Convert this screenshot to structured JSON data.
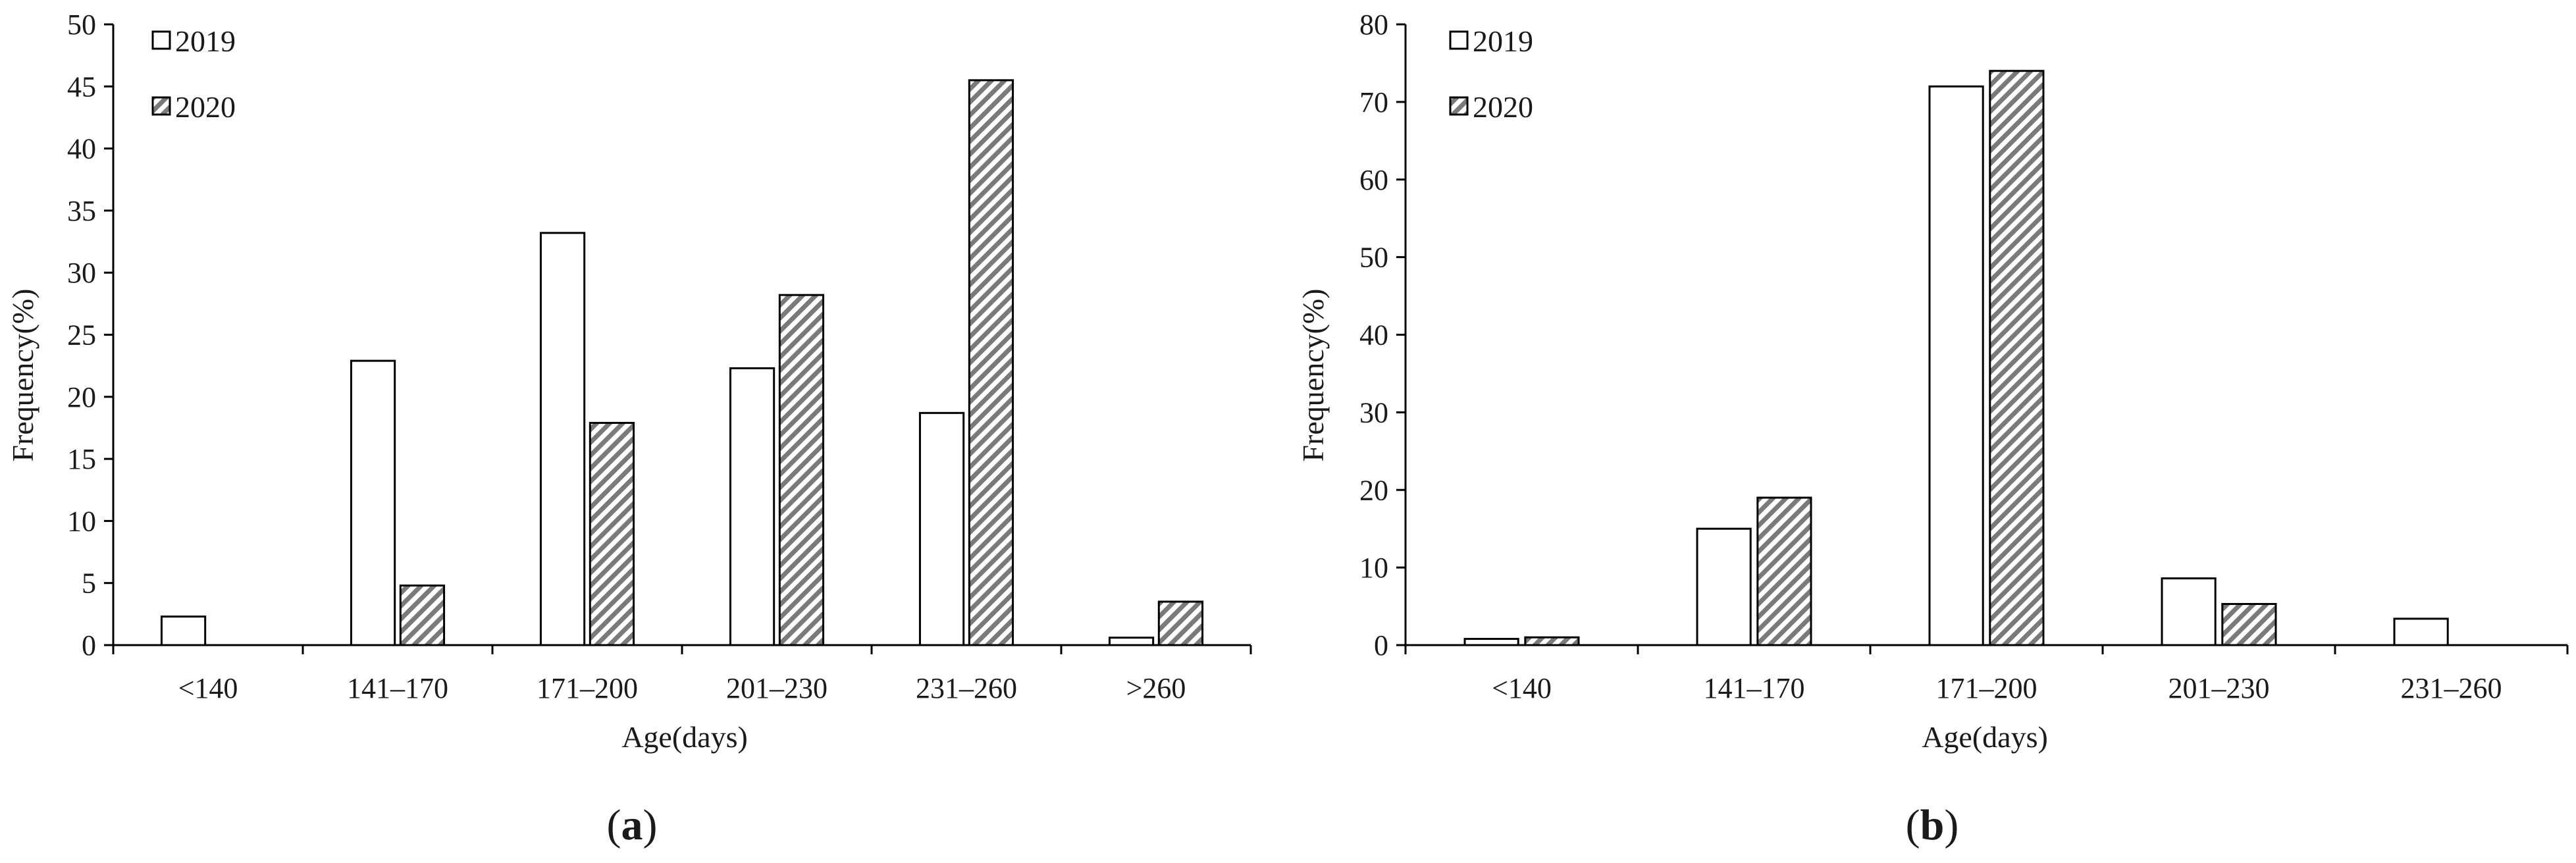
{
  "chart_data": [
    {
      "type": "bar",
      "panel_label": "a",
      "categories": [
        "<140",
        "141–170",
        "171–200",
        "201–230",
        "231–260",
        ">260"
      ],
      "series": [
        {
          "name": "2019",
          "values": [
            2.3,
            22.9,
            33.2,
            22.3,
            18.7,
            0.6
          ]
        },
        {
          "name": "2020",
          "values": [
            0,
            4.8,
            17.9,
            28.2,
            45.5,
            3.5
          ]
        }
      ],
      "xlabel": "Age(days)",
      "ylabel": "Frequency(%)",
      "ylim": [
        0,
        50
      ],
      "yticks": [
        "0",
        "5",
        "10",
        "15",
        "20",
        "25",
        "30",
        "35",
        "40",
        "45",
        "50"
      ],
      "grid": false,
      "legend": "top-left"
    },
    {
      "type": "bar",
      "panel_label": "b",
      "categories": [
        "<140",
        "141–170",
        "171–200",
        "201–230",
        "231–260"
      ],
      "series": [
        {
          "name": "2019",
          "values": [
            0.8,
            15.0,
            72.0,
            8.6,
            3.4
          ]
        },
        {
          "name": "2020",
          "values": [
            1.0,
            19.0,
            74.0,
            5.3,
            0
          ]
        }
      ],
      "xlabel": "Age(days)",
      "ylabel": "Frequency(%)",
      "ylim": [
        0,
        80
      ],
      "yticks": [
        "0",
        "10",
        "20",
        "30",
        "40",
        "50",
        "60",
        "70",
        "80"
      ],
      "grid": false,
      "legend": "top-left"
    }
  ],
  "captions": [
    {
      "open": "(",
      "letter": "a",
      "close": ")"
    },
    {
      "open": "(",
      "letter": "b",
      "close": ")"
    }
  ],
  "colors": {
    "series_2019_fill": "#ffffff",
    "series_2020_hatch": "#7a7a7a",
    "bar_stroke": "#000000",
    "axis": "#000000"
  }
}
